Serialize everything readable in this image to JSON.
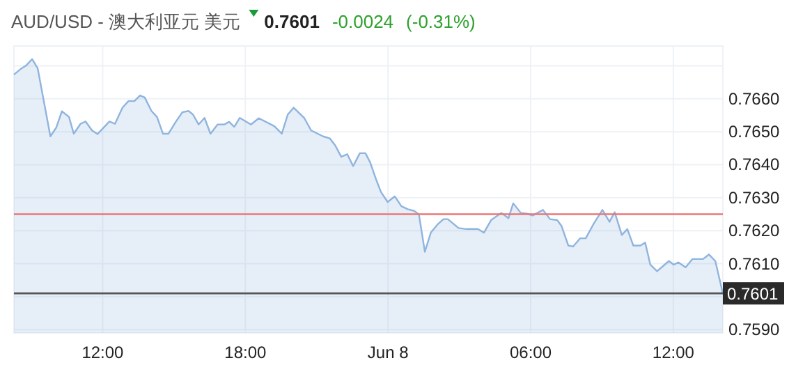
{
  "chart_data": {
    "type": "area",
    "title": "AUD/USD - 澳大利亚元 美元",
    "annotations": [
      "0.7601",
      "-0.0024",
      "(-0.31%)"
    ],
    "series": [
      {
        "color": "#8fb4de",
        "x": [
          "--06-07T08:16",
          "--06-07T08:35",
          "--06-07T08:47",
          "--06-07T09:02",
          "--06-07T09:16",
          "--06-07T09:48",
          "--06-07T10:03",
          "--06-07T10:17",
          "--06-07T10:35",
          "--06-07T10:47",
          "--06-07T11:04",
          "--06-07T11:17",
          "--06-07T11:33",
          "--06-07T11:47",
          "--06-07T12:17",
          "--06-07T12:31",
          "--06-07T12:50",
          "--06-07T13:05",
          "--06-07T13:20",
          "--06-07T13:34",
          "--06-07T13:46",
          "--06-07T14:03",
          "--06-07T14:17",
          "--06-07T14:32",
          "--06-07T14:46",
          "--06-07T15:05",
          "--06-07T15:21",
          "--06-07T15:37",
          "--06-07T15:48",
          "--06-07T16:02",
          "--06-07T16:17",
          "--06-07T16:32",
          "--06-07T16:50",
          "--06-07T17:07",
          "--06-07T17:19",
          "--06-07T17:32",
          "--06-07T17:46",
          "--06-07T18:14",
          "--06-07T18:34",
          "--06-07T19:13",
          "--06-07T19:32",
          "--06-07T19:47",
          "--06-07T20:02",
          "--06-07T20:29",
          "--06-07T20:46",
          "--06-07T21:16",
          "--06-07T21:33",
          "--06-07T21:47",
          "--06-07T22:02",
          "--06-07T22:17",
          "--06-07T22:32",
          "--06-07T22:49",
          "--06-07T23:03",
          "--06-07T23:15",
          "--06-07T23:30",
          "--06-07T23:42",
          "--06-07T23:59",
          "--06-08T00:17",
          "--06-08T00:34",
          "--06-08T00:50",
          "--06-08T01:06",
          "--06-08T01:18",
          "--06-08T01:33",
          "--06-08T01:48",
          "--06-08T02:05",
          "--06-08T02:20",
          "--06-08T02:31",
          "--06-08T02:58",
          "--06-08T03:18",
          "--06-08T03:47",
          "--06-08T04:02",
          "--06-08T04:20",
          "--06-08T04:46",
          "--06-08T05:04",
          "--06-08T05:16",
          "--06-08T05:35",
          "--06-08T05:50",
          "--06-08T06:05",
          "--06-08T06:31",
          "--06-08T06:49",
          "--06-08T07:07",
          "--06-08T07:18",
          "--06-08T07:35",
          "--06-08T07:47",
          "--06-08T08:05",
          "--06-08T08:19",
          "--06-08T08:38",
          "--06-08T09:01",
          "--06-08T09:19",
          "--06-08T09:32",
          "--06-08T09:50",
          "--06-08T10:04",
          "--06-08T10:19",
          "--06-08T10:37",
          "--06-08T10:49",
          "--06-08T11:02",
          "--06-08T11:19",
          "--06-08T11:38",
          "--06-08T11:49",
          "--06-08T12:01",
          "--06-08T12:13",
          "--06-08T12:31",
          "--06-08T12:48",
          "--06-08T13:15",
          "--06-08T13:30",
          "--06-08T13:46",
          "--06-08T14:05"
        ],
        "values": [
          0.76673,
          0.76692,
          0.76701,
          0.7672,
          0.76692,
          0.76486,
          0.76513,
          0.76562,
          0.76545,
          0.76494,
          0.76524,
          0.76531,
          0.76504,
          0.76493,
          0.76531,
          0.76524,
          0.76573,
          0.76593,
          0.76593,
          0.7661,
          0.76604,
          0.76563,
          0.76545,
          0.76494,
          0.76494,
          0.76531,
          0.76559,
          0.76563,
          0.76552,
          0.76522,
          0.76542,
          0.76494,
          0.76522,
          0.76522,
          0.7653,
          0.76515,
          0.76542,
          0.76522,
          0.76541,
          0.76517,
          0.76494,
          0.76552,
          0.76573,
          0.76541,
          0.76504,
          0.76486,
          0.7648,
          0.76458,
          0.76424,
          0.76432,
          0.76396,
          0.76435,
          0.76435,
          0.76407,
          0.76355,
          0.76318,
          0.76287,
          0.76304,
          0.76274,
          0.76265,
          0.7626,
          0.76249,
          0.76136,
          0.76194,
          0.76219,
          0.76235,
          0.76235,
          0.76208,
          0.76205,
          0.76205,
          0.76194,
          0.76232,
          0.76254,
          0.76238,
          0.76283,
          0.76254,
          0.76252,
          0.76246,
          0.76263,
          0.76235,
          0.76232,
          0.76214,
          0.76155,
          0.76152,
          0.76177,
          0.76177,
          0.76219,
          0.76263,
          0.76227,
          0.76256,
          0.76187,
          0.76205,
          0.76155,
          0.76155,
          0.76164,
          0.76097,
          0.76077,
          0.76097,
          0.76108,
          0.76097,
          0.76104,
          0.76089,
          0.76114,
          0.76114,
          0.76128,
          0.76108,
          0.7601
        ]
      }
    ],
    "xlim": [
      "--06-07T08:16",
      "--06-08T14:05"
    ],
    "xticks": [
      {
        "value": "--06-07T12:00",
        "label": "12:00"
      },
      {
        "value": "--06-07T18:00",
        "label": "18:00"
      },
      {
        "value": "--06-08T00:00",
        "label": "Jun 8"
      },
      {
        "value": "--06-08T06:00",
        "label": "06:00"
      },
      {
        "value": "--06-08T12:00",
        "label": "12:00"
      }
    ],
    "ylim": [
      0.7589,
      0.7676
    ],
    "yticks": [
      {
        "value": 0.759,
        "label": "0.7590"
      },
      {
        "value": 0.76,
        "label": null
      },
      {
        "value": 0.761,
        "label": "0.7610"
      },
      {
        "value": 0.762,
        "label": "0.7620"
      },
      {
        "value": 0.763,
        "label": "0.7630"
      },
      {
        "value": 0.764,
        "label": "0.7640"
      },
      {
        "value": 0.765,
        "label": "0.7650"
      },
      {
        "value": 0.766,
        "label": "0.7660"
      },
      {
        "value": 0.767,
        "label": null
      }
    ],
    "ref_lines": [
      {
        "axis": "y",
        "value": 0.7625,
        "color": "#e87878"
      },
      {
        "axis": "y",
        "value": 0.7601,
        "label": "0.7601",
        "color": "#555555"
      }
    ],
    "grid": true
  }
}
